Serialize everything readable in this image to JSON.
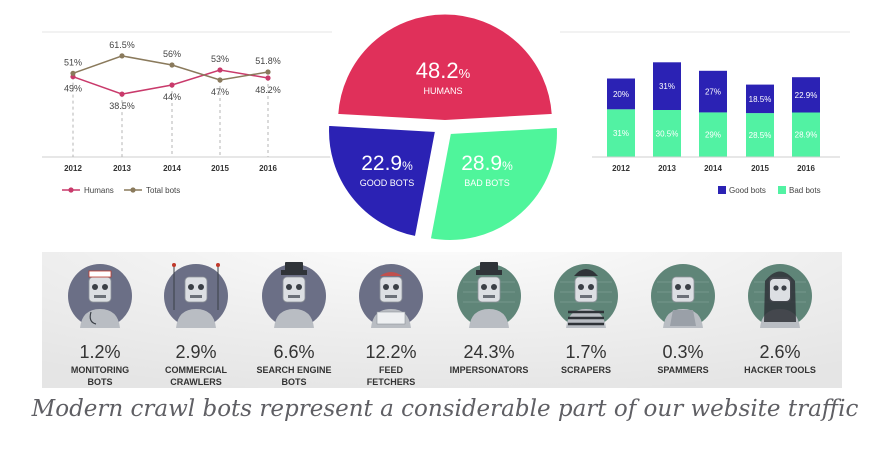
{
  "colors": {
    "humans": "#e0305a",
    "good_bots": "#2b22b4",
    "bad_bots": "#4ff59b",
    "humans_line": "#c93a6b",
    "total_bots_line": "#8a7a5c",
    "bar_good": "#2b22b4",
    "bar_bad": "#52f2a3",
    "bot_circle_teal": "#5f8578",
    "bot_circle_slate": "#6b6f86",
    "band": "#e6e6e6"
  },
  "chart_data": [
    {
      "type": "line",
      "x": [
        "2012",
        "2013",
        "2014",
        "2015",
        "2016"
      ],
      "series": [
        {
          "name": "Humans",
          "values": [
            49,
            38.5,
            44,
            53,
            48.2
          ],
          "labels": [
            "49%",
            "38.5%",
            "44%",
            "53%",
            "48.2%"
          ]
        },
        {
          "name": "Total bots",
          "values": [
            51,
            61.5,
            56,
            47,
            51.8
          ],
          "labels": [
            "51%",
            "61.5%",
            "56%",
            "47%",
            "51.8%"
          ]
        }
      ],
      "legend": "bottom-left",
      "grid": false
    },
    {
      "type": "pie",
      "slices": [
        {
          "value": 48.2,
          "number": "48.2",
          "unit": "%",
          "label": "HUMANS"
        },
        {
          "value": 22.9,
          "number": "22.9",
          "unit": "%",
          "label": "GOOD BOTS"
        },
        {
          "value": 28.9,
          "number": "28.9",
          "unit": "%",
          "label": "BAD BOTS"
        }
      ]
    },
    {
      "type": "bar",
      "stacked": true,
      "categories": [
        "2012",
        "2013",
        "2014",
        "2015",
        "2016"
      ],
      "series": [
        {
          "name": "Bad bots",
          "values": [
            31,
            30.5,
            29,
            28.5,
            28.9
          ],
          "labels": [
            "31%",
            "30.5%",
            "29%",
            "28.5%",
            "28.9%"
          ]
        },
        {
          "name": "Good bots",
          "values": [
            20,
            31,
            27,
            18.5,
            22.9
          ],
          "labels": [
            "20%",
            "31%",
            "27%",
            "18.5%",
            "22.9%"
          ]
        }
      ],
      "legend": "bottom-right",
      "grid": false
    }
  ],
  "bots": [
    {
      "value": "1.2%",
      "label1": "MONITORING",
      "label2": "BOTS",
      "icon": "monitoring-bot-icon",
      "theme": "slate"
    },
    {
      "value": "2.9%",
      "label1": "COMMERCIAL",
      "label2": "CRAWLERS",
      "icon": "commercial-crawler-icon",
      "theme": "slate"
    },
    {
      "value": "6.6%",
      "label1": "SEARCH ENGINE",
      "label2": "BOTS",
      "icon": "search-engine-bot-icon",
      "theme": "slate"
    },
    {
      "value": "12.2%",
      "label1": "FEED",
      "label2": "FETCHERS",
      "icon": "feed-fetcher-icon",
      "theme": "slate"
    },
    {
      "value": "24.3%",
      "label1": "IMPERSONATORS",
      "label2": "",
      "icon": "impersonator-icon",
      "theme": "teal"
    },
    {
      "value": "1.7%",
      "label1": "SCRAPERS",
      "label2": "",
      "icon": "scraper-icon",
      "theme": "teal"
    },
    {
      "value": "0.3%",
      "label1": "SPAMMERS",
      "label2": "",
      "icon": "spammer-icon",
      "theme": "teal"
    },
    {
      "value": "2.6%",
      "label1": "HACKER TOOLS",
      "label2": "",
      "icon": "hacker-tool-icon",
      "theme": "teal"
    }
  ],
  "caption": "Modern crawl bots represent a considerable part of our website traffic"
}
